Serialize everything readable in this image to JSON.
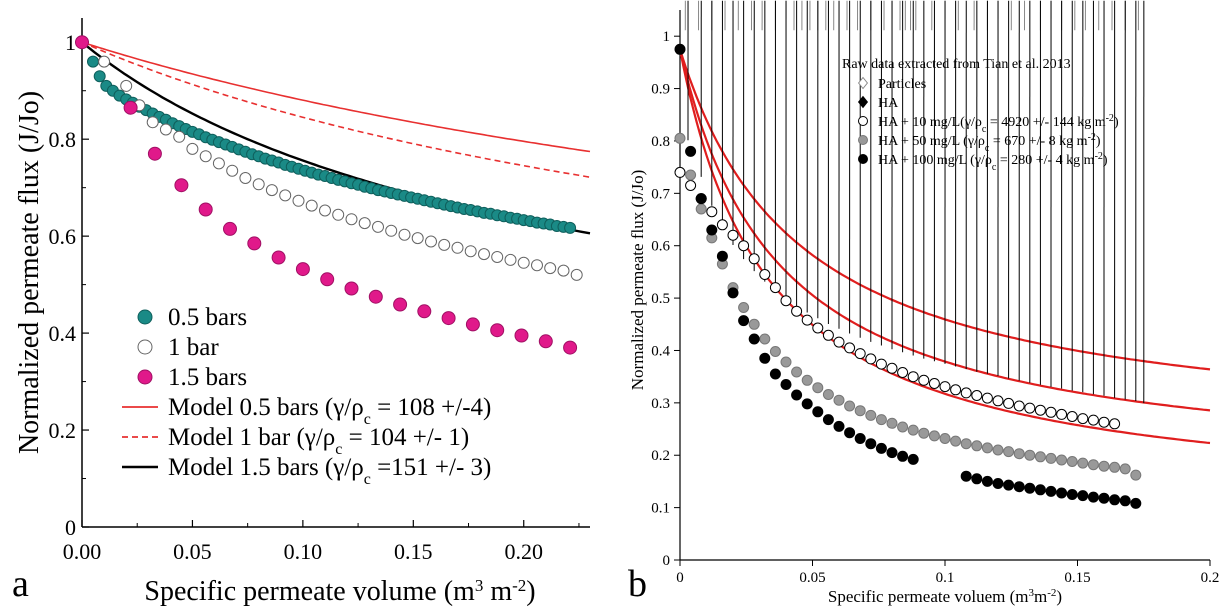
{
  "chart_data": [
    {
      "type": "scatter",
      "panel_label": "a",
      "xlabel": "Specific permeate volume (m",
      "xlabel_sup1": "3",
      "xlabel_mid": " m",
      "xlabel_sup2": "-2",
      "xlabel_end": ")",
      "ylabel": "Normalized permeate flux (J/Jo)",
      "xlim": [
        0,
        0.23
      ],
      "ylim": [
        0,
        1.05
      ],
      "x_ticks": [
        {
          "v": 0,
          "label": "0.00"
        },
        {
          "v": 0.05,
          "label": "0.05"
        },
        {
          "v": 0.1,
          "label": "0.10"
        },
        {
          "v": 0.15,
          "label": "0.15"
        },
        {
          "v": 0.2,
          "label": "0.20"
        }
      ],
      "y_ticks": [
        {
          "v": 0,
          "label": "0"
        },
        {
          "v": 0.2,
          "label": "0.2"
        },
        {
          "v": 0.4,
          "label": "0.4"
        },
        {
          "v": 0.6,
          "label": "0.6"
        },
        {
          "v": 0.8,
          "label": "0.8"
        },
        {
          "v": 1,
          "label": "1"
        }
      ],
      "legend_position": "bottom-left",
      "series": [
        {
          "name": "0.5 bars",
          "marker": "circle",
          "color": "#1a8a86",
          "edge": "#0f5f5c",
          "sample": "data",
          "x": [
            0.0,
            0.005,
            0.008,
            0.011,
            0.014,
            0.017,
            0.02,
            0.023,
            0.026,
            0.029,
            0.032,
            0.035,
            0.038,
            0.041,
            0.044,
            0.047,
            0.05,
            0.053,
            0.056,
            0.059,
            0.062,
            0.065,
            0.068,
            0.071,
            0.074,
            0.077,
            0.08,
            0.083,
            0.086,
            0.089,
            0.092,
            0.095,
            0.098,
            0.101,
            0.104,
            0.107,
            0.11,
            0.113,
            0.116,
            0.119,
            0.122,
            0.125,
            0.128,
            0.131,
            0.134,
            0.137,
            0.14,
            0.143,
            0.146,
            0.149,
            0.152,
            0.155,
            0.158,
            0.161,
            0.164,
            0.167,
            0.17,
            0.173,
            0.176,
            0.179,
            0.182,
            0.185,
            0.188,
            0.191,
            0.194,
            0.197,
            0.2,
            0.203,
            0.206,
            0.209,
            0.212,
            0.215,
            0.218,
            0.221
          ],
          "y": [
            1.0,
            0.96,
            0.93,
            0.91,
            0.9,
            0.89,
            0.882,
            0.875,
            0.867,
            0.86,
            0.853,
            0.846,
            0.84,
            0.833,
            0.827,
            0.821,
            0.815,
            0.81,
            0.804,
            0.799,
            0.794,
            0.789,
            0.784,
            0.779,
            0.774,
            0.769,
            0.765,
            0.76,
            0.756,
            0.752,
            0.747,
            0.743,
            0.739,
            0.735,
            0.731,
            0.727,
            0.724,
            0.72,
            0.716,
            0.713,
            0.709,
            0.706,
            0.702,
            0.699,
            0.695,
            0.692,
            0.689,
            0.686,
            0.683,
            0.68,
            0.677,
            0.674,
            0.671,
            0.668,
            0.665,
            0.662,
            0.659,
            0.656,
            0.654,
            0.651,
            0.648,
            0.646,
            0.643,
            0.641,
            0.638,
            0.636,
            0.633,
            0.631,
            0.628,
            0.626,
            0.624,
            0.621,
            0.619,
            0.617
          ]
        },
        {
          "name": "1 bar",
          "marker": "circle-open",
          "color": "#ffffff",
          "edge": "#666666",
          "sample": "data",
          "x": [
            0.0,
            0.01,
            0.02,
            0.026,
            0.032,
            0.038,
            0.044,
            0.05,
            0.056,
            0.062,
            0.068,
            0.074,
            0.08,
            0.086,
            0.092,
            0.098,
            0.104,
            0.11,
            0.116,
            0.122,
            0.128,
            0.134,
            0.14,
            0.146,
            0.152,
            0.158,
            0.164,
            0.17,
            0.176,
            0.182,
            0.188,
            0.194,
            0.2,
            0.206,
            0.212,
            0.218,
            0.224
          ],
          "y": [
            1.0,
            0.96,
            0.91,
            0.87,
            0.835,
            0.82,
            0.805,
            0.78,
            0.765,
            0.75,
            0.735,
            0.72,
            0.707,
            0.695,
            0.684,
            0.673,
            0.663,
            0.653,
            0.644,
            0.635,
            0.627,
            0.619,
            0.611,
            0.603,
            0.596,
            0.589,
            0.582,
            0.576,
            0.569,
            0.563,
            0.557,
            0.551,
            0.545,
            0.54,
            0.534,
            0.529,
            0.52
          ]
        },
        {
          "name": "1.5 bars",
          "marker": "circle",
          "color": "#e0198a",
          "edge": "#a01064",
          "sample": "data",
          "x": [
            0.0,
            0.022,
            0.033,
            0.045,
            0.056,
            0.067,
            0.078,
            0.089,
            0.1,
            0.111,
            0.122,
            0.133,
            0.144,
            0.155,
            0.166,
            0.177,
            0.188,
            0.199,
            0.21,
            0.221
          ],
          "y": [
            1.0,
            0.865,
            0.77,
            0.705,
            0.655,
            0.615,
            0.585,
            0.556,
            0.532,
            0.511,
            0.492,
            0.475,
            0.459,
            0.445,
            0.431,
            0.418,
            0.406,
            0.395,
            0.383,
            0.37
          ]
        },
        {
          "name": "Model 0.5 bars (",
          "name_tail": " = 108 +/-4)",
          "marker": "line",
          "color": "#e83030",
          "dash": "",
          "sample": "line",
          "k": 2.9
        },
        {
          "name": "Model 1 bar (",
          "name_tail": " = 104 +/- 1)",
          "marker": "line",
          "color": "#e83030",
          "dash": "6,4",
          "sample": "line",
          "k": 4.0
        },
        {
          "name": "Model 1.5 bars (",
          "name_tail": " =151 +/- 3)",
          "marker": "line",
          "color": "#000000",
          "dash": "",
          "sample": "line",
          "k": 7.5
        }
      ],
      "gamma_rho_label": "γ/ρ",
      "gamma_rho_sub": "c"
    },
    {
      "type": "scatter",
      "panel_label": "b",
      "xlabel": "Specific permeate voluem (m",
      "xlabel_sup1": "3",
      "xlabel_mid": "m",
      "xlabel_sup2": "-2",
      "xlabel_end": ")",
      "ylabel": "Normalized permeate flux (J/Jo)",
      "xlim": [
        0,
        0.2
      ],
      "ylim": [
        0,
        1.05
      ],
      "x_ticks": [
        {
          "v": 0,
          "label": "0"
        },
        {
          "v": 0.05,
          "label": "0.05"
        },
        {
          "v": 0.1,
          "label": "0.1"
        },
        {
          "v": 0.15,
          "label": "0.15"
        },
        {
          "v": 0.2,
          "label": "0.2"
        }
      ],
      "y_ticks": [
        {
          "v": 0,
          "label": "0"
        },
        {
          "v": 0.1,
          "label": "0.1"
        },
        {
          "v": 0.2,
          "label": "0.2"
        },
        {
          "v": 0.3,
          "label": "0.3"
        },
        {
          "v": 0.4,
          "label": "0.4"
        },
        {
          "v": 0.5,
          "label": "0.5"
        },
        {
          "v": 0.6,
          "label": "0.6"
        },
        {
          "v": 0.7,
          "label": "0.7"
        },
        {
          "v": 0.8,
          "label": "0.8"
        },
        {
          "v": 0.9,
          "label": "0.9"
        },
        {
          "v": 1,
          "label": "1"
        }
      ],
      "legend_title": "Raw data extracted from Tian et al. 2013",
      "legend_position": "top-center",
      "series": [
        {
          "name": "Particles",
          "marker": "diamond-open",
          "color": "#ffffff",
          "edge": "#888888",
          "x": [
            0.002,
            0.007,
            0.012,
            0.017,
            0.022,
            0.027,
            0.031,
            0.036,
            0.04,
            0.043,
            0.046,
            0.049,
            0.052,
            0.055,
            0.058,
            0.063,
            0.067,
            0.072,
            0.077,
            0.08,
            0.083,
            0.085,
            0.087,
            0.089,
            0.095,
            0.1,
            0.105,
            0.111,
            0.116,
            0.12,
            0.125,
            0.13,
            0.136,
            0.14,
            0.144,
            0.149,
            0.153,
            0.158,
            0.163,
            0.168,
            0.173
          ],
          "y": [
            1,
            1,
            1,
            1,
            1,
            1,
            1,
            1,
            1,
            1,
            1,
            1,
            1,
            1,
            1,
            1,
            1,
            1,
            1,
            1,
            1,
            1,
            1,
            1,
            1,
            1,
            1,
            1,
            1,
            1,
            1,
            1,
            1,
            1,
            1,
            1,
            1,
            1,
            1,
            1,
            1
          ]
        },
        {
          "name": "HA",
          "marker": "diamond",
          "color": "#000000",
          "edge": "#000000",
          "x": [
            0.003,
            0.008,
            0.012,
            0.016,
            0.02,
            0.024,
            0.028,
            0.032,
            0.036,
            0.04,
            0.044,
            0.048,
            0.052,
            0.056,
            0.06,
            0.064,
            0.068,
            0.072,
            0.076,
            0.08,
            0.084,
            0.088,
            0.092,
            0.096,
            0.1,
            0.104,
            0.108,
            0.112,
            0.116,
            0.12,
            0.124,
            0.128,
            0.132,
            0.136,
            0.14,
            0.144,
            0.148,
            0.152,
            0.156,
            0.16,
            0.164,
            0.168,
            0.172,
            0.175
          ],
          "y": [
            0.79,
            0.72,
            0.665,
            0.625,
            0.59,
            0.563,
            0.54,
            0.52,
            0.502,
            0.487,
            0.473,
            0.461,
            0.45,
            0.439,
            0.43,
            0.421,
            0.413,
            0.405,
            0.398,
            0.391,
            0.385,
            0.379,
            0.373,
            0.368,
            0.363,
            0.358,
            0.353,
            0.348,
            0.344,
            0.34,
            0.335,
            0.331,
            0.327,
            0.323,
            0.319,
            0.316,
            0.312,
            0.309,
            0.305,
            0.302,
            0.298,
            0.295,
            0.292,
            0.288
          ]
        },
        {
          "name": "HA + 10 mg/L(",
          "name_tail": " = 4920 +/- 144 kg m",
          "name_sup": "-2",
          "name_end": ")",
          "marker": "circle-open",
          "color": "#ffffff",
          "edge": "#000000",
          "x": [
            0.0,
            0.004,
            0.008,
            0.012,
            0.016,
            0.02,
            0.024,
            0.028,
            0.032,
            0.036,
            0.04,
            0.044,
            0.048,
            0.052,
            0.056,
            0.06,
            0.064,
            0.068,
            0.072,
            0.076,
            0.08,
            0.084,
            0.088,
            0.092,
            0.096,
            0.1,
            0.104,
            0.108,
            0.112,
            0.116,
            0.12,
            0.124,
            0.128,
            0.132,
            0.136,
            0.14,
            0.144,
            0.148,
            0.152,
            0.156,
            0.16,
            0.164
          ],
          "y": [
            0.74,
            0.715,
            0.69,
            0.665,
            0.64,
            0.62,
            0.6,
            0.575,
            0.545,
            0.52,
            0.495,
            0.475,
            0.458,
            0.443,
            0.429,
            0.416,
            0.405,
            0.394,
            0.384,
            0.374,
            0.366,
            0.358,
            0.35,
            0.343,
            0.337,
            0.331,
            0.325,
            0.319,
            0.314,
            0.309,
            0.304,
            0.299,
            0.294,
            0.29,
            0.286,
            0.282,
            0.278,
            0.274,
            0.27,
            0.267,
            0.263,
            0.26
          ]
        },
        {
          "name": "HA + 50 mg/L (",
          "name_tail": " = 670 +/- 8 kg m",
          "name_sup": "-2",
          "name_end": ")",
          "marker": "circle",
          "color": "#999999",
          "edge": "#777777",
          "x": [
            0.0,
            0.004,
            0.008,
            0.012,
            0.016,
            0.02,
            0.024,
            0.028,
            0.032,
            0.036,
            0.04,
            0.044,
            0.048,
            0.052,
            0.056,
            0.06,
            0.064,
            0.068,
            0.072,
            0.076,
            0.08,
            0.084,
            0.088,
            0.092,
            0.096,
            0.1,
            0.104,
            0.108,
            0.112,
            0.116,
            0.12,
            0.124,
            0.128,
            0.132,
            0.136,
            0.14,
            0.144,
            0.148,
            0.152,
            0.156,
            0.16,
            0.164,
            0.168,
            0.172
          ],
          "y": [
            0.805,
            0.735,
            0.67,
            0.615,
            0.565,
            0.52,
            0.482,
            0.45,
            0.422,
            0.398,
            0.378,
            0.359,
            0.343,
            0.329,
            0.316,
            0.305,
            0.294,
            0.285,
            0.276,
            0.268,
            0.261,
            0.254,
            0.248,
            0.242,
            0.237,
            0.232,
            0.227,
            0.222,
            0.218,
            0.214,
            0.21,
            0.207,
            0.203,
            0.2,
            0.197,
            0.194,
            0.191,
            0.188,
            0.185,
            0.182,
            0.179,
            0.177,
            0.174,
            0.162
          ]
        },
        {
          "name": "HA + 100 mg/L (",
          "name_tail": " = 280 +/- 4 kg m",
          "name_sup": "-2",
          "name_end": ")",
          "marker": "circle",
          "color": "#000000",
          "edge": "#000000",
          "x": [
            0.0,
            0.004,
            0.008,
            0.012,
            0.016,
            0.02,
            0.024,
            0.028,
            0.032,
            0.036,
            0.04,
            0.044,
            0.048,
            0.052,
            0.056,
            0.06,
            0.064,
            0.068,
            0.072,
            0.076,
            0.08,
            0.084,
            0.088,
            0.108,
            0.112,
            0.116,
            0.12,
            0.124,
            0.128,
            0.132,
            0.136,
            0.14,
            0.144,
            0.148,
            0.152,
            0.156,
            0.16,
            0.164,
            0.168,
            0.172
          ],
          "y": [
            0.975,
            0.78,
            0.69,
            0.63,
            0.58,
            0.51,
            0.457,
            0.422,
            0.385,
            0.355,
            0.335,
            0.315,
            0.298,
            0.283,
            0.268,
            0.255,
            0.243,
            0.232,
            0.222,
            0.213,
            0.205,
            0.198,
            0.192,
            0.16,
            0.155,
            0.15,
            0.146,
            0.143,
            0.14,
            0.137,
            0.134,
            0.131,
            0.128,
            0.125,
            0.123,
            0.12,
            0.118,
            0.115,
            0.113,
            0.108
          ]
        }
      ],
      "model_curves": [
        {
          "color": "#e01e1e",
          "a": 0.22,
          "k": 22,
          "base": 0.225
        },
        {
          "color": "#e01e1e",
          "a": 0.16,
          "k": 27,
          "base": 0.158
        },
        {
          "color": "#e01e1e",
          "a": 0.1,
          "k": 30,
          "base": 0.098
        }
      ],
      "gamma_rho_label": "γ/ρ",
      "gamma_rho_sub": "c"
    }
  ]
}
